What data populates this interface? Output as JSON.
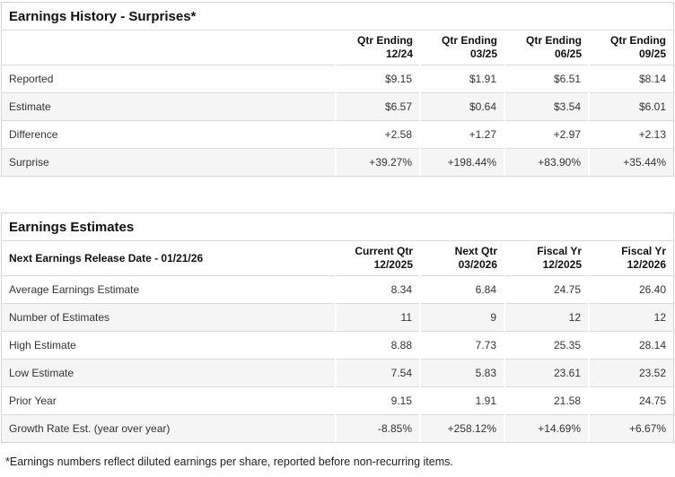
{
  "surprises": {
    "title": "Earnings History - Surprises*",
    "columns": [
      {
        "line1": "Qtr Ending",
        "line2": "12/24"
      },
      {
        "line1": "Qtr Ending",
        "line2": "03/25"
      },
      {
        "line1": "Qtr Ending",
        "line2": "06/25"
      },
      {
        "line1": "Qtr Ending",
        "line2": "09/25"
      }
    ],
    "rows": [
      {
        "label": "Reported",
        "values": [
          "$9.15",
          "$1.91",
          "$6.51",
          "$8.14"
        ]
      },
      {
        "label": "Estimate",
        "values": [
          "$6.57",
          "$0.64",
          "$3.54",
          "$6.01"
        ]
      },
      {
        "label": "Difference",
        "values": [
          "+2.58",
          "+1.27",
          "+2.97",
          "+2.13"
        ]
      },
      {
        "label": "Surprise",
        "values": [
          "+39.27%",
          "+198.44%",
          "+83.90%",
          "+35.44%"
        ]
      }
    ]
  },
  "estimates": {
    "title": "Earnings Estimates",
    "header_label": "Next Earnings Release Date - 01/21/26",
    "columns": [
      {
        "line1": "Current Qtr",
        "line2": "12/2025"
      },
      {
        "line1": "Next Qtr",
        "line2": "03/2026"
      },
      {
        "line1": "Fiscal Yr",
        "line2": "12/2025"
      },
      {
        "line1": "Fiscal Yr",
        "line2": "12/2026"
      }
    ],
    "rows": [
      {
        "label": "Average Earnings Estimate",
        "values": [
          "8.34",
          "6.84",
          "24.75",
          "26.40"
        ]
      },
      {
        "label": "Number of Estimates",
        "values": [
          "11",
          "9",
          "12",
          "12"
        ]
      },
      {
        "label": "High Estimate",
        "values": [
          "8.88",
          "7.73",
          "25.35",
          "28.14"
        ]
      },
      {
        "label": "Low Estimate",
        "values": [
          "7.54",
          "5.83",
          "23.61",
          "23.52"
        ]
      },
      {
        "label": "Prior Year",
        "values": [
          "9.15",
          "1.91",
          "21.58",
          "24.75"
        ]
      },
      {
        "label": "Growth Rate Est. (year over year)",
        "values": [
          "-8.85%",
          "+258.12%",
          "+14.69%",
          "+6.67%"
        ]
      }
    ]
  },
  "footnote": "*Earnings numbers reflect diluted earnings per share, reported before non-recurring items.",
  "colors": {
    "positive": "#1d8567",
    "negative": "#c74a4a",
    "stripe": "#f5f5f5",
    "border": "#d4d4d4"
  }
}
